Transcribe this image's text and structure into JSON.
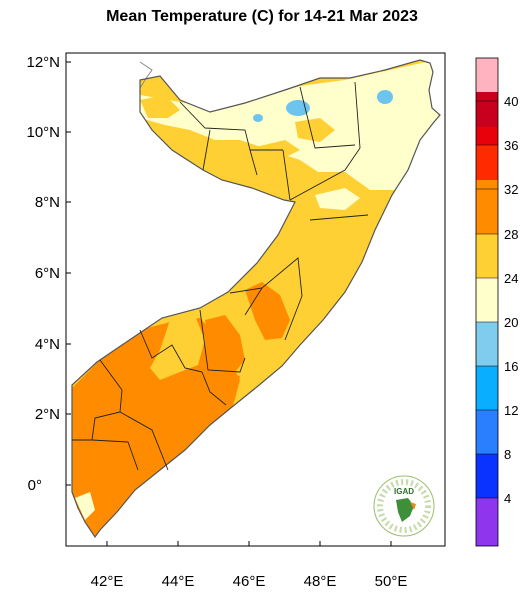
{
  "title": "Mean Temperature (C) for 14-21 Mar 2023",
  "lat_labels": [
    "12°N",
    "10°N",
    "8°N",
    "6°N",
    "4°N",
    "2°N",
    "0°"
  ],
  "lon_labels": [
    "42°E",
    "44°E",
    "46°E",
    "48°E",
    "50°E"
  ],
  "colorbar": {
    "ticks": [
      "40",
      "36",
      "32",
      "28",
      "24",
      "20",
      "16",
      "12",
      "8",
      "4"
    ],
    "bins_top_to_bottom": [
      "#ffb3c0",
      "#c8001e",
      "#e8000b",
      "#ff2a00",
      "#ff8c00",
      "#ffd033",
      "#ffffcc",
      "#7fccee",
      "#0aaeff",
      "#2a7fff",
      "#0a33ff",
      "#0000dd",
      "#8f35ee"
    ]
  },
  "logo_text": "IGAD",
  "palette": {
    "orange": "#ff8c00",
    "yellow": "#ffd033",
    "cream": "#ffffcc",
    "lightblue": "#6dc4ee"
  }
}
